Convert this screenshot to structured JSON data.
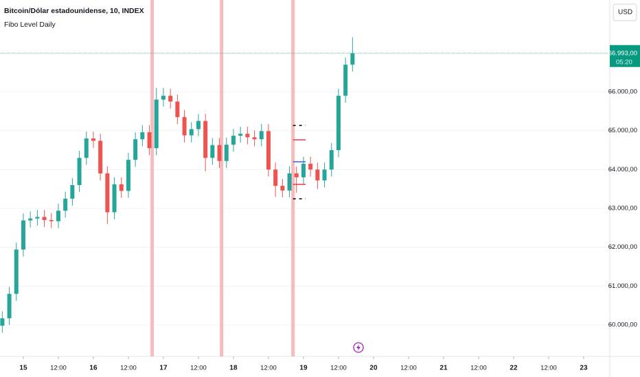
{
  "chart_data": {
    "type": "candlestick",
    "title": "Bitcoin/Dólar estadounidense, 10, INDEX",
    "subtitle": "Fibo Level Daily",
    "currency": "USD",
    "up_color": "#26a69a",
    "down_color": "#ef5350",
    "x": [
      14.7,
      14.8,
      14.9,
      15.0,
      15.1,
      15.2,
      15.3,
      15.4,
      15.5,
      15.6,
      15.7,
      15.8,
      15.9,
      16.0,
      16.1,
      16.2,
      16.3,
      16.4,
      16.5,
      16.6,
      16.7,
      16.8,
      16.9,
      17.0,
      17.1,
      17.2,
      17.3,
      17.4,
      17.5,
      17.6,
      17.7,
      17.8,
      17.9,
      18.0,
      18.1,
      18.2,
      18.3,
      18.4,
      18.5,
      18.6,
      18.7,
      18.8,
      18.9,
      19.0,
      19.1,
      19.2,
      19.3,
      19.4,
      19.5,
      19.6,
      19.7
    ],
    "open": [
      59980,
      60170,
      60800,
      61940,
      62690,
      62740,
      62780,
      62700,
      62670,
      62940,
      63250,
      63600,
      64300,
      64800,
      64740,
      63900,
      62900,
      63620,
      63450,
      64250,
      64780,
      64960,
      64550,
      65800,
      65900,
      65750,
      65350,
      64880,
      65040,
      65250,
      64300,
      64630,
      64220,
      64640,
      64870,
      64920,
      64830,
      64780,
      64990,
      64000,
      63580,
      63460,
      63900,
      63800,
      64150,
      64000,
      63720,
      64000,
      64500,
      65900,
      66700
    ],
    "high": [
      60350,
      60980,
      62120,
      62870,
      62920,
      62960,
      62960,
      62880,
      63120,
      63430,
      63780,
      64480,
      64980,
      64980,
      64920,
      64080,
      63800,
      63800,
      64430,
      64960,
      65140,
      65140,
      66100,
      66100,
      66080,
      65930,
      65530,
      65220,
      65430,
      65430,
      64810,
      64810,
      64820,
      65050,
      65100,
      65100,
      65010,
      65170,
      65170,
      64180,
      63760,
      64080,
      64080,
      64330,
      64330,
      64180,
      64180,
      64680,
      66080,
      66880,
      67400
    ],
    "low": [
      59800,
      60000,
      60620,
      61760,
      62510,
      62560,
      62520,
      62490,
      62490,
      62760,
      63070,
      63420,
      64120,
      64560,
      63720,
      62600,
      62720,
      63270,
      63270,
      64070,
      64600,
      64370,
      64370,
      65620,
      65570,
      65170,
      64700,
      64700,
      64860,
      63950,
      64120,
      64040,
      64040,
      64460,
      64690,
      64650,
      64600,
      64600,
      63820,
      63300,
      63280,
      63280,
      63400,
      63620,
      63820,
      63500,
      63540,
      63820,
      64320,
      65720,
      66520
    ],
    "close": [
      60170,
      60800,
      61940,
      62690,
      62740,
      62780,
      62700,
      62670,
      62940,
      63250,
      63600,
      64300,
      64800,
      64740,
      63900,
      62900,
      63620,
      63450,
      64250,
      64780,
      64960,
      64550,
      65800,
      65900,
      65750,
      65350,
      64880,
      65040,
      65250,
      64300,
      64630,
      64220,
      64640,
      64870,
      64920,
      64830,
      64780,
      64990,
      64000,
      63580,
      63460,
      63900,
      63800,
      64150,
      64000,
      63720,
      64000,
      64500,
      65900,
      66700,
      66993
    ],
    "xlim": [
      14.667,
      23.373
    ],
    "ylim": [
      59188,
      68365
    ],
    "yticks": [
      {
        "value": 60000,
        "label": "60.000,00"
      },
      {
        "value": 61000,
        "label": "61.000,00"
      },
      {
        "value": 62000,
        "label": "62.000,00"
      },
      {
        "value": 63000,
        "label": "63.000,00"
      },
      {
        "value": 64000,
        "label": "64.000,00"
      },
      {
        "value": 65000,
        "label": "65.000,00"
      },
      {
        "value": 66000,
        "label": "66.000,00"
      }
    ],
    "xticks": [
      15,
      {
        "value": 15.5,
        "label": "12:00"
      },
      16,
      {
        "value": 16.5,
        "label": "12:00"
      },
      17,
      {
        "value": 17.5,
        "label": "12:00"
      },
      18,
      {
        "value": 18.5,
        "label": "12:00"
      },
      19,
      {
        "value": 19.5,
        "label": "12:00"
      },
      20,
      {
        "value": 20.5,
        "label": "12:00"
      },
      21,
      {
        "value": 21.5,
        "label": "12:00"
      },
      22,
      {
        "value": 22.5,
        "label": "12:00"
      },
      23
    ],
    "last_price": {
      "value": 66993,
      "label": "66.993,00"
    },
    "countdown": "05:20",
    "session_lines": [
      16.84,
      17.83,
      18.85
    ],
    "session_color": "#f8bbbb",
    "fibo_x": [
      18.85,
      19.03
    ],
    "fibo_levels": [
      {
        "value": 65135,
        "color": "#000000",
        "dashed": true
      },
      {
        "value": 64765,
        "color": "#f23645",
        "dashed": false
      },
      {
        "value": 64200,
        "color": "#2962ff",
        "dashed": false
      },
      {
        "value": 63618,
        "color": "#f23645",
        "dashed": false
      },
      {
        "value": 63247,
        "color": "#000000",
        "dashed": true
      }
    ],
    "grid": true
  }
}
